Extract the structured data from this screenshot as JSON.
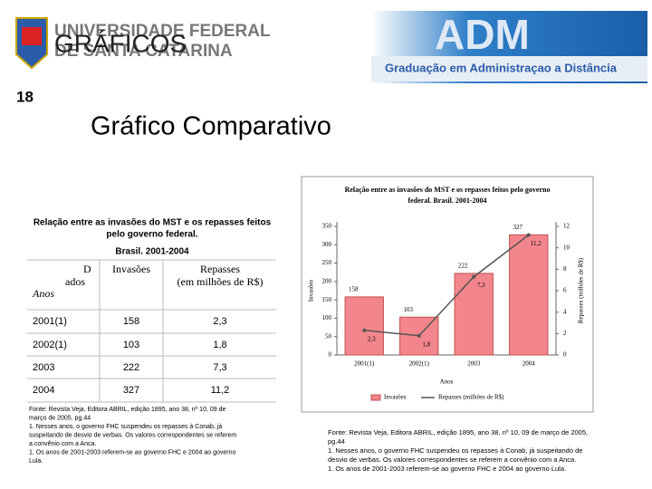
{
  "header": {
    "university": [
      "UNIVERSIDADE FEDERAL",
      "DE SANTA CATARINA"
    ],
    "overlay": "GRÁFICOS",
    "brand": "ADM",
    "course": "Graduação em Administraçao a Distância"
  },
  "slide_number": "18",
  "title": "Gráfico Comparativo",
  "table": {
    "caption": [
      "Relação entre as invasões do MST e os repasses feitos",
      "pelo governo federal."
    ],
    "subcaption": "Brasil. 2001-2004",
    "header": [
      "D",
      "ados",
      "Anos",
      "Invasões",
      "Repasses",
      "(em milhões de R$)"
    ],
    "rows": [
      [
        "2001(1)",
        "158",
        "2,3"
      ],
      [
        "2002(1)",
        "103",
        "1,8"
      ],
      [
        "2003",
        "222",
        "7,3"
      ],
      [
        "2004",
        "327",
        "11,2"
      ]
    ]
  },
  "left_source": [
    "Fonte: Revista Veja, Editora ABRIL, edição 1895, ano 38, nº 10, 09 de",
    "março de 2005, pg.44",
    "1. Nesses anos, o governo FHC suspendeu os repasses à Conab, já",
    "suspeitando de desvio de verbas. Os valores correspondentes se referem",
    "a convênio com a Anca.",
    "1. Os anos de 2001-2003 referem-se ao governo FHC e 2004 ao governo",
    "Lula."
  ],
  "chart_data": {
    "type": "bar",
    "title": [
      "Relação entre as invasões do MST e os repasses feitos pelo governo",
      "federal. Brasil. 2001-2004"
    ],
    "categories": [
      "2001(1)",
      "2002(1)",
      "2003",
      "2004"
    ],
    "series": [
      {
        "name": "Invasões",
        "color": "#f2868c",
        "values": [
          158,
          103,
          222,
          327
        ],
        "value_labels": [
          "158",
          "103",
          "222",
          "327"
        ]
      },
      {
        "name": "Repasses (milhões de R$)",
        "color": "#555555",
        "axis": "y2",
        "values": [
          2.3,
          1.8,
          7.3,
          11.2
        ],
        "value_labels": [
          "2,3",
          "1,8",
          "7,3",
          "11,2"
        ]
      }
    ],
    "ylim": [
      0,
      350
    ],
    "yticks": [
      0,
      50,
      100,
      150,
      200,
      250,
      300,
      350
    ],
    "y2lim": [
      0,
      12
    ],
    "y2ticks": [
      0,
      2,
      4,
      6,
      8,
      10,
      12
    ],
    "y_label": "Invasões",
    "y2_label": "Repasses (milhões de R$)",
    "x_label": "Anos",
    "source": [
      "Fonte: Revista Veja, Editora ABRIL, edição 1895, ano 38, nº 10, 09 de março de 2005,",
      "pg.44",
      "1. Nesses anos, o governo FHC suspendeu os repasses à Conab, já suspeitando de",
      "desvio de verbas. Os valores correspondentes se referem a convênio com a Anca.",
      "1. Os anos de 2001-2003 referem-se ao governo FHC e 2004 ao governo Lula."
    ]
  }
}
